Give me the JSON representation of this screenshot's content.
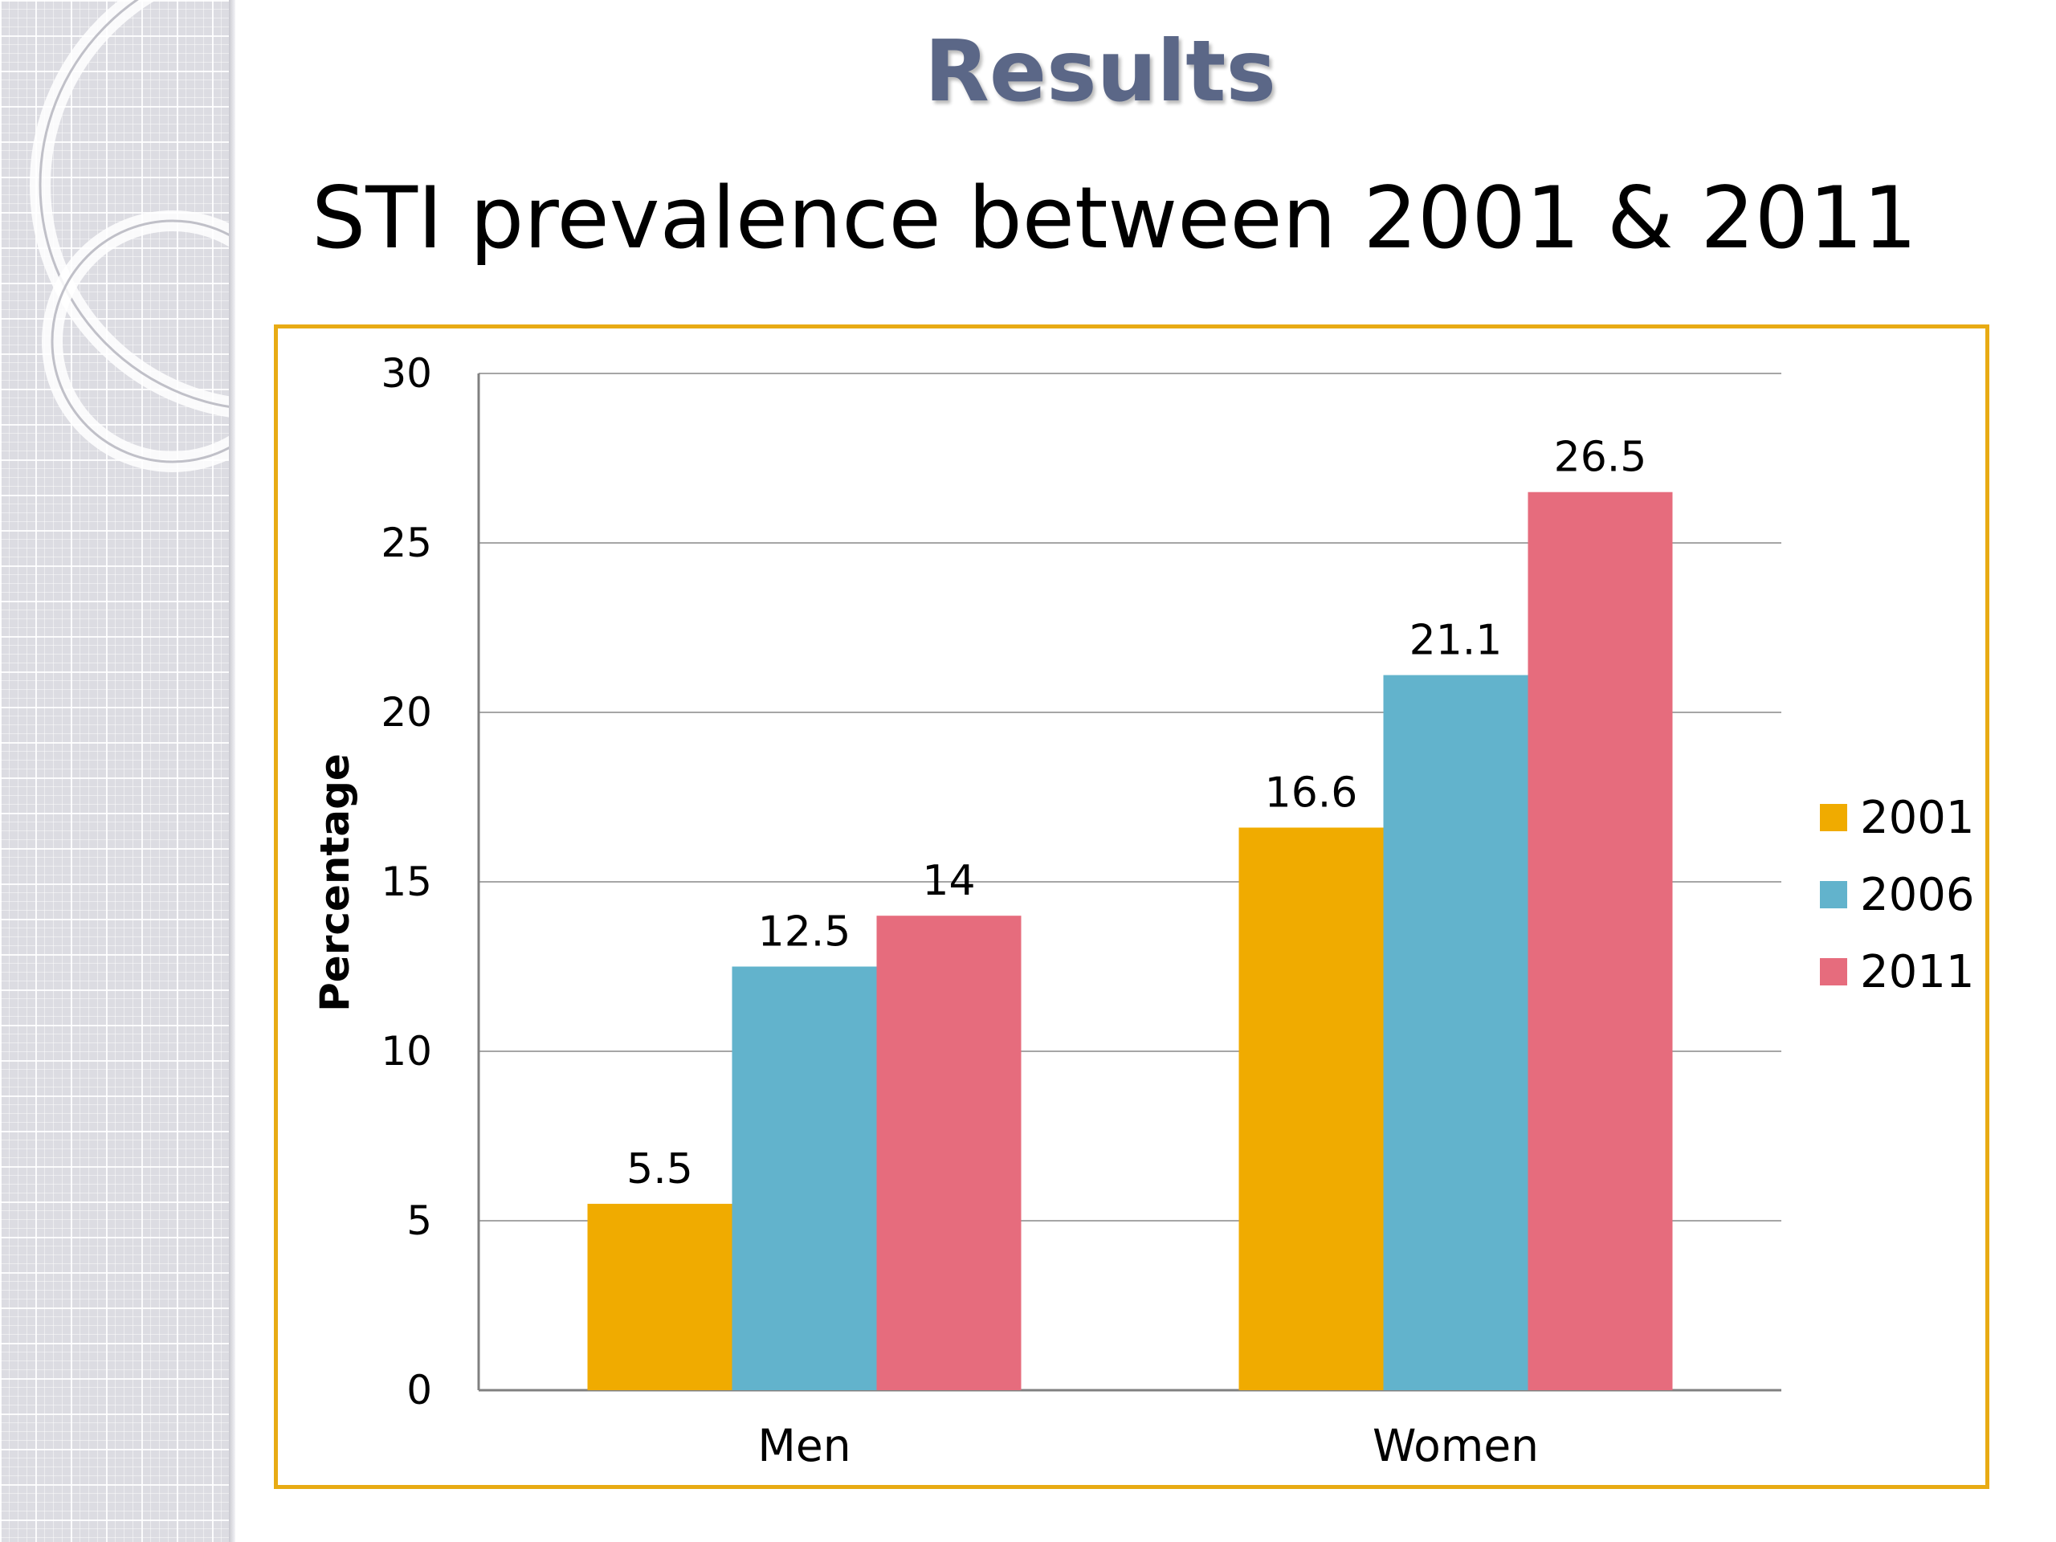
{
  "slide": {
    "title": "Results",
    "subtitle": "STI prevalence between 2001 & 2011"
  },
  "colors": {
    "title": "#5b6787",
    "frame": "#e8ab14",
    "series_2001": "#f0ab00",
    "series_2006": "#62b3cc",
    "series_2011": "#e66c7d",
    "gridline": "#a6a6a6"
  },
  "chart_data": {
    "type": "bar",
    "title": "",
    "xlabel": "",
    "ylabel": "Percentage",
    "categories": [
      "Men",
      "Women"
    ],
    "series": [
      {
        "name": "2001",
        "values": [
          5.5,
          16.6
        ]
      },
      {
        "name": "2006",
        "values": [
          12.5,
          21.1
        ]
      },
      {
        "name": "2011",
        "values": [
          14,
          26.5
        ]
      }
    ],
    "ylim": [
      0,
      30
    ],
    "yticks": [
      0,
      5,
      10,
      15,
      20,
      25,
      30
    ],
    "grid": true,
    "legend": "right",
    "data_labels": true
  }
}
